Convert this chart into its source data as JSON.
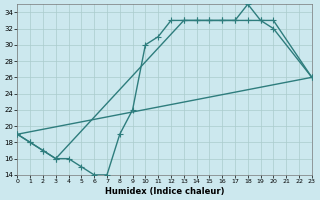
{
  "xlabel": "Humidex (Indice chaleur)",
  "xlim": [
    0,
    23
  ],
  "ylim": [
    14,
    35
  ],
  "yticks": [
    14,
    16,
    18,
    20,
    22,
    24,
    26,
    28,
    30,
    32,
    34
  ],
  "xticks": [
    0,
    1,
    2,
    3,
    4,
    5,
    6,
    7,
    8,
    9,
    10,
    11,
    12,
    13,
    14,
    15,
    16,
    17,
    18,
    19,
    20,
    21,
    22,
    23
  ],
  "bg_color": "#cce8ee",
  "grid_color": "#aacccc",
  "line_color": "#2e7d7d",
  "line1_x": [
    0,
    1,
    2,
    3,
    4,
    5,
    6,
    7,
    8,
    9,
    10,
    11,
    12,
    13,
    14,
    15,
    16,
    17,
    18,
    19,
    20,
    23
  ],
  "line1_y": [
    19,
    18,
    17,
    16,
    16,
    15,
    14,
    14,
    19,
    22,
    30,
    31,
    33,
    33,
    33,
    33,
    33,
    33,
    35,
    33,
    33,
    26
  ],
  "line2_x": [
    0,
    1,
    2,
    3,
    13,
    14,
    15,
    16,
    17,
    18,
    19,
    20,
    23
  ],
  "line2_y": [
    19,
    18,
    17,
    16,
    33,
    33,
    33,
    33,
    33,
    33,
    33,
    32,
    26
  ],
  "line3_x": [
    0,
    23
  ],
  "line3_y": [
    19,
    26
  ],
  "markersize": 2.5,
  "linewidth": 1.0
}
